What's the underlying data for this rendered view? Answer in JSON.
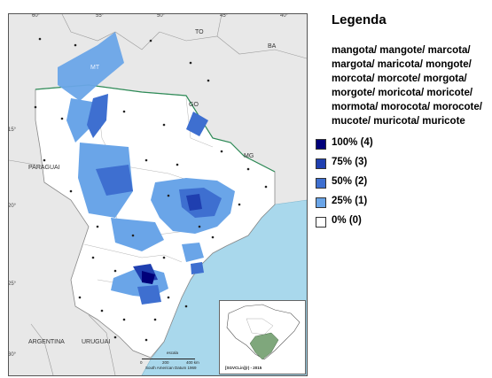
{
  "map": {
    "coords_top": [
      "60°",
      "55°",
      "50°",
      "45°",
      "40°"
    ],
    "coords_left": [
      "15°",
      "20°",
      "25°",
      "30°"
    ],
    "state_labels": {
      "to": "TO",
      "ba": "BA",
      "mt": "MT",
      "go": "GO",
      "mg": "MG",
      "paraguai": "PARAGUAI",
      "argentina": "ARGENTINA",
      "uruguai": "URUGUAI"
    },
    "scale": {
      "title": "escala",
      "ticks": [
        "0",
        "200",
        "400 km"
      ],
      "datum": "South American Datum 1969"
    },
    "inset_caption": "[SGVCLin](r) - 2015"
  },
  "legend": {
    "title": "Legenda",
    "terms": "mangota/ mangote/ marcota/ margota/ maricota/ mongote/ morcota/ morcote/ morgota/ morgote/ moricota/ moricote/ mormota/ morocota/ morocote/ mucote/ muricota/ muricote",
    "items": [
      {
        "label": "100% (4)",
        "color": "#00007a"
      },
      {
        "label": "75% (3)",
        "color": "#1f3fb0"
      },
      {
        "label": "50% (2)",
        "color": "#3e6fd0"
      },
      {
        "label": "25% (1)",
        "color": "#6aa5e8"
      },
      {
        "label": "0% (0)",
        "color": "#ffffff"
      }
    ]
  },
  "colors": {
    "ocean": "#a9d8ec",
    "land_outside": "#e8e8e8",
    "study_region": "#ffffff",
    "inset_highlight": "#7fa77c"
  }
}
